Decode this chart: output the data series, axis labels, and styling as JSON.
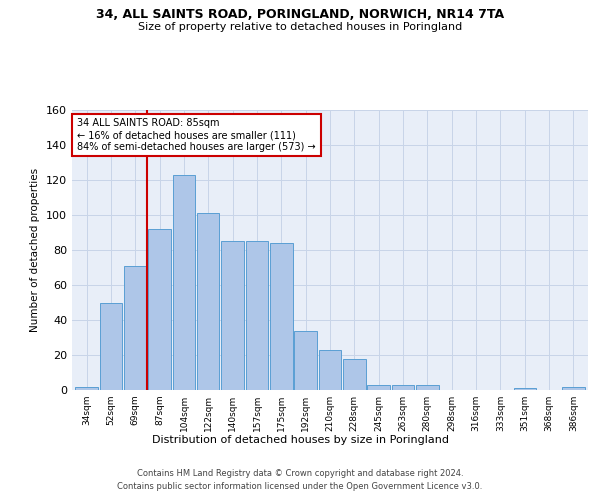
{
  "title": "34, ALL SAINTS ROAD, PORINGLAND, NORWICH, NR14 7TA",
  "subtitle": "Size of property relative to detached houses in Poringland",
  "xlabel": "Distribution of detached houses by size in Poringland",
  "ylabel": "Number of detached properties",
  "bar_labels": [
    "34sqm",
    "52sqm",
    "69sqm",
    "87sqm",
    "104sqm",
    "122sqm",
    "140sqm",
    "157sqm",
    "175sqm",
    "192sqm",
    "210sqm",
    "228sqm",
    "245sqm",
    "263sqm",
    "280sqm",
    "298sqm",
    "316sqm",
    "333sqm",
    "351sqm",
    "368sqm",
    "386sqm"
  ],
  "bar_values": [
    2,
    50,
    71,
    92,
    123,
    101,
    85,
    85,
    84,
    34,
    23,
    18,
    3,
    3,
    3,
    0,
    0,
    0,
    1,
    0,
    2
  ],
  "bar_color": "#aec6e8",
  "bar_edgecolor": "#5a9fd4",
  "property_label": "34 ALL SAINTS ROAD: 85sqm",
  "pct_smaller": 16,
  "n_smaller": 111,
  "pct_larger_semi": 84,
  "n_larger_semi": 573,
  "vline_color": "#cc0000",
  "annotation_box_edgecolor": "#cc0000",
  "grid_color": "#c8d4e8",
  "bg_color": "#e8eef8",
  "ylim": [
    0,
    160
  ],
  "yticks": [
    0,
    20,
    40,
    60,
    80,
    100,
    120,
    140,
    160
  ],
  "footer1": "Contains HM Land Registry data © Crown copyright and database right 2024.",
  "footer2": "Contains public sector information licensed under the Open Government Licence v3.0."
}
